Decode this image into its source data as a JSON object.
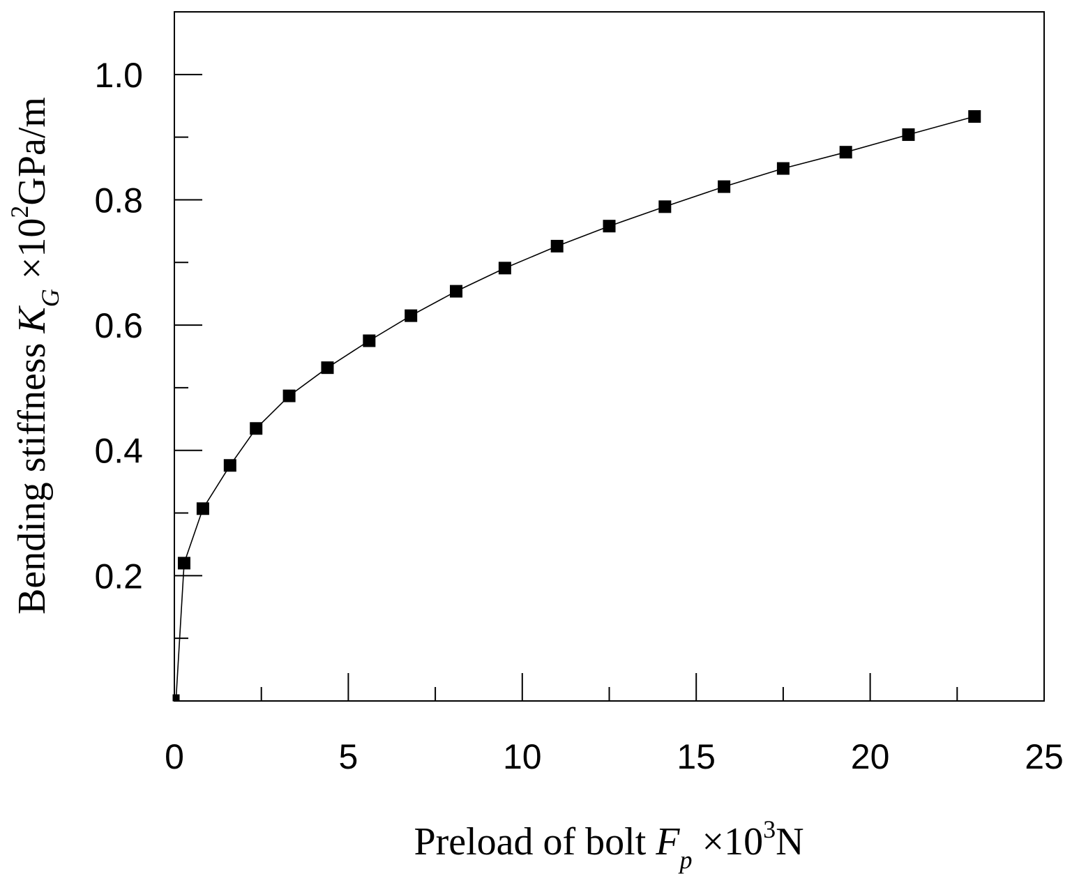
{
  "chart_data": {
    "type": "line",
    "markers": "filled-square",
    "grid": false,
    "xlim": [
      0,
      25
    ],
    "ylim": [
      0,
      1.1
    ],
    "x_ticks": [
      0,
      5,
      10,
      15,
      20,
      25
    ],
    "x_ticks_minor": [
      2.5,
      7.5,
      12.5,
      17.5,
      22.5
    ],
    "y_ticks": [
      0.2,
      0.4,
      0.6,
      0.8,
      1.0
    ],
    "y_ticks_minor": [
      0.1,
      0.3,
      0.5,
      0.7,
      0.9
    ],
    "x_tick_labels": [
      "0",
      "5",
      "10",
      "15",
      "20",
      "25"
    ],
    "y_tick_labels": [
      "0.2",
      "0.4",
      "0.6",
      "0.8",
      "1.0"
    ],
    "xlabel": {
      "text": "Preload of bolt ",
      "symbol": "F",
      "subscript": "p",
      "multiplier": " ×10",
      "exponent": "3",
      "unit": "N"
    },
    "ylabel": {
      "text": "Bending stiffness ",
      "symbol": "K",
      "subscript": "G",
      "multiplier": " ×10",
      "exponent": "2",
      "unit": "GPa/m"
    },
    "series": [
      {
        "color": "#000000",
        "x": [
          0.05,
          0.28,
          0.82,
          1.6,
          2.35,
          3.3,
          4.4,
          5.6,
          6.8,
          8.1,
          9.5,
          11.0,
          12.5,
          14.1,
          15.8,
          17.5,
          19.3,
          21.1,
          23.0
        ],
        "y": [
          0.005,
          0.22,
          0.307,
          0.376,
          0.435,
          0.487,
          0.532,
          0.575,
          0.615,
          0.654,
          0.691,
          0.726,
          0.758,
          0.789,
          0.821,
          0.85,
          0.876,
          0.904,
          0.933
        ]
      }
    ]
  }
}
